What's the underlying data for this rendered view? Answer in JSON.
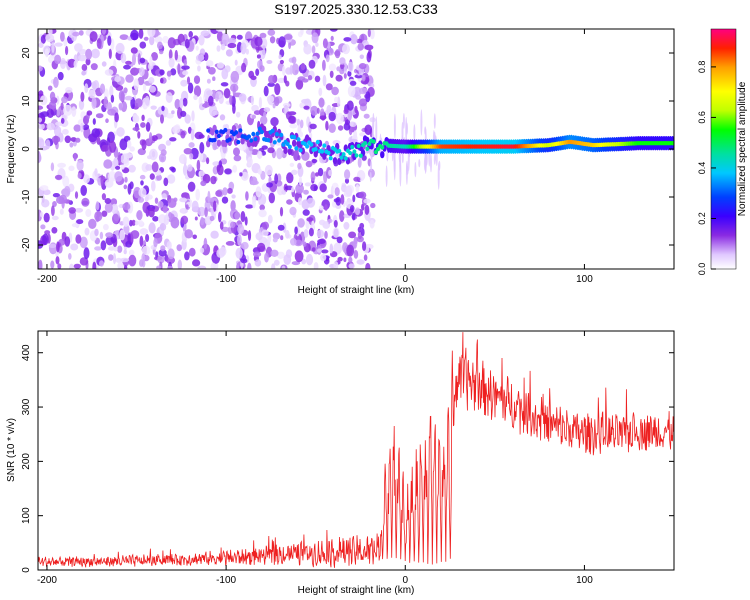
{
  "chart_data": [
    {
      "type": "heatmap",
      "title": "S197.2025.330.12.53.C33",
      "xlabel": "Height of straight line (km)",
      "ylabel": "Frequency (Hz)",
      "xlim": [
        -205,
        150
      ],
      "ylim": [
        -25,
        25
      ],
      "xticks": [
        "-200",
        "-100",
        "0",
        "100"
      ],
      "xtick_values": [
        -200,
        -100,
        0,
        100
      ],
      "yticks": [
        "20",
        "10",
        "0",
        "-10",
        "-20"
      ],
      "ytick_values": [
        20,
        10,
        0,
        -10,
        -20
      ],
      "colorbar": {
        "label": "Normalized spectral amplitude",
        "range": [
          0.0,
          0.95
        ],
        "ticks": [
          "0.0",
          "0.2",
          "0.4",
          "0.6",
          "0.8"
        ],
        "tick_values": [
          0.0,
          0.2,
          0.4,
          0.6,
          0.8
        ],
        "colors": [
          "#ffffff",
          "#e0c8ff",
          "#8a2be2",
          "#3a00ff",
          "#0040ff",
          "#00c8ff",
          "#00e0a0",
          "#00ff00",
          "#c0ff00",
          "#ffff00",
          "#ffa000",
          "#ff2000",
          "#ff0080"
        ]
      },
      "ridge": [
        {
          "x": -100,
          "f": 2.5,
          "a": 0.3
        },
        {
          "x": -80,
          "f": 3.0,
          "a": 0.35
        },
        {
          "x": -60,
          "f": 1.0,
          "a": 0.38
        },
        {
          "x": -35,
          "f": -1.0,
          "a": 0.42
        },
        {
          "x": -15,
          "f": 0.8,
          "a": 0.5
        },
        {
          "x": 0,
          "f": 0.5,
          "a": 0.45
        },
        {
          "x": 20,
          "f": 0.5,
          "a": 0.85
        },
        {
          "x": 60,
          "f": 0.5,
          "a": 0.9
        },
        {
          "x": 80,
          "f": 0.8,
          "a": 0.65
        },
        {
          "x": 92,
          "f": 1.5,
          "a": 0.8
        },
        {
          "x": 105,
          "f": 0.8,
          "a": 0.75
        },
        {
          "x": 130,
          "f": 1.2,
          "a": 0.55
        },
        {
          "x": 150,
          "f": 1.2,
          "a": 0.55
        }
      ]
    },
    {
      "type": "line",
      "xlabel": "Height of straight line (km)",
      "ylabel": "SNR (10 * v/v)",
      "xlim": [
        -205,
        150
      ],
      "ylim": [
        0,
        440
      ],
      "xticks": [
        "-200",
        "-100",
        "0",
        "100"
      ],
      "xtick_values": [
        -200,
        -100,
        0,
        100
      ],
      "yticks": [
        "0",
        "100",
        "200",
        "300",
        "400"
      ],
      "ytick_values": [
        0,
        100,
        200,
        300,
        400
      ],
      "color": "#ee2020",
      "series": [
        {
          "name": "SNR",
          "x": [
            -205,
            -180,
            -150,
            -120,
            -100,
            -80,
            -60,
            -40,
            -25,
            -14,
            -12,
            -8,
            -5,
            0,
            5,
            10,
            15,
            20,
            25,
            26,
            30,
            35,
            40,
            50,
            60,
            70,
            80,
            90,
            100,
            110,
            120,
            130,
            140,
            150
          ],
          "y": [
            15,
            15,
            17,
            20,
            22,
            26,
            30,
            32,
            34,
            35,
            120,
            190,
            230,
            60,
            120,
            180,
            220,
            180,
            230,
            300,
            360,
            350,
            340,
            320,
            305,
            285,
            270,
            260,
            250,
            252,
            250,
            255,
            255,
            255
          ],
          "amplitude": [
            8,
            8,
            9,
            10,
            12,
            14,
            18,
            22,
            24,
            24,
            40,
            60,
            60,
            60,
            70,
            80,
            90,
            80,
            60,
            50,
            45,
            45,
            42,
            40,
            38,
            36,
            34,
            32,
            32,
            30,
            30,
            30,
            30,
            30
          ]
        }
      ]
    }
  ]
}
